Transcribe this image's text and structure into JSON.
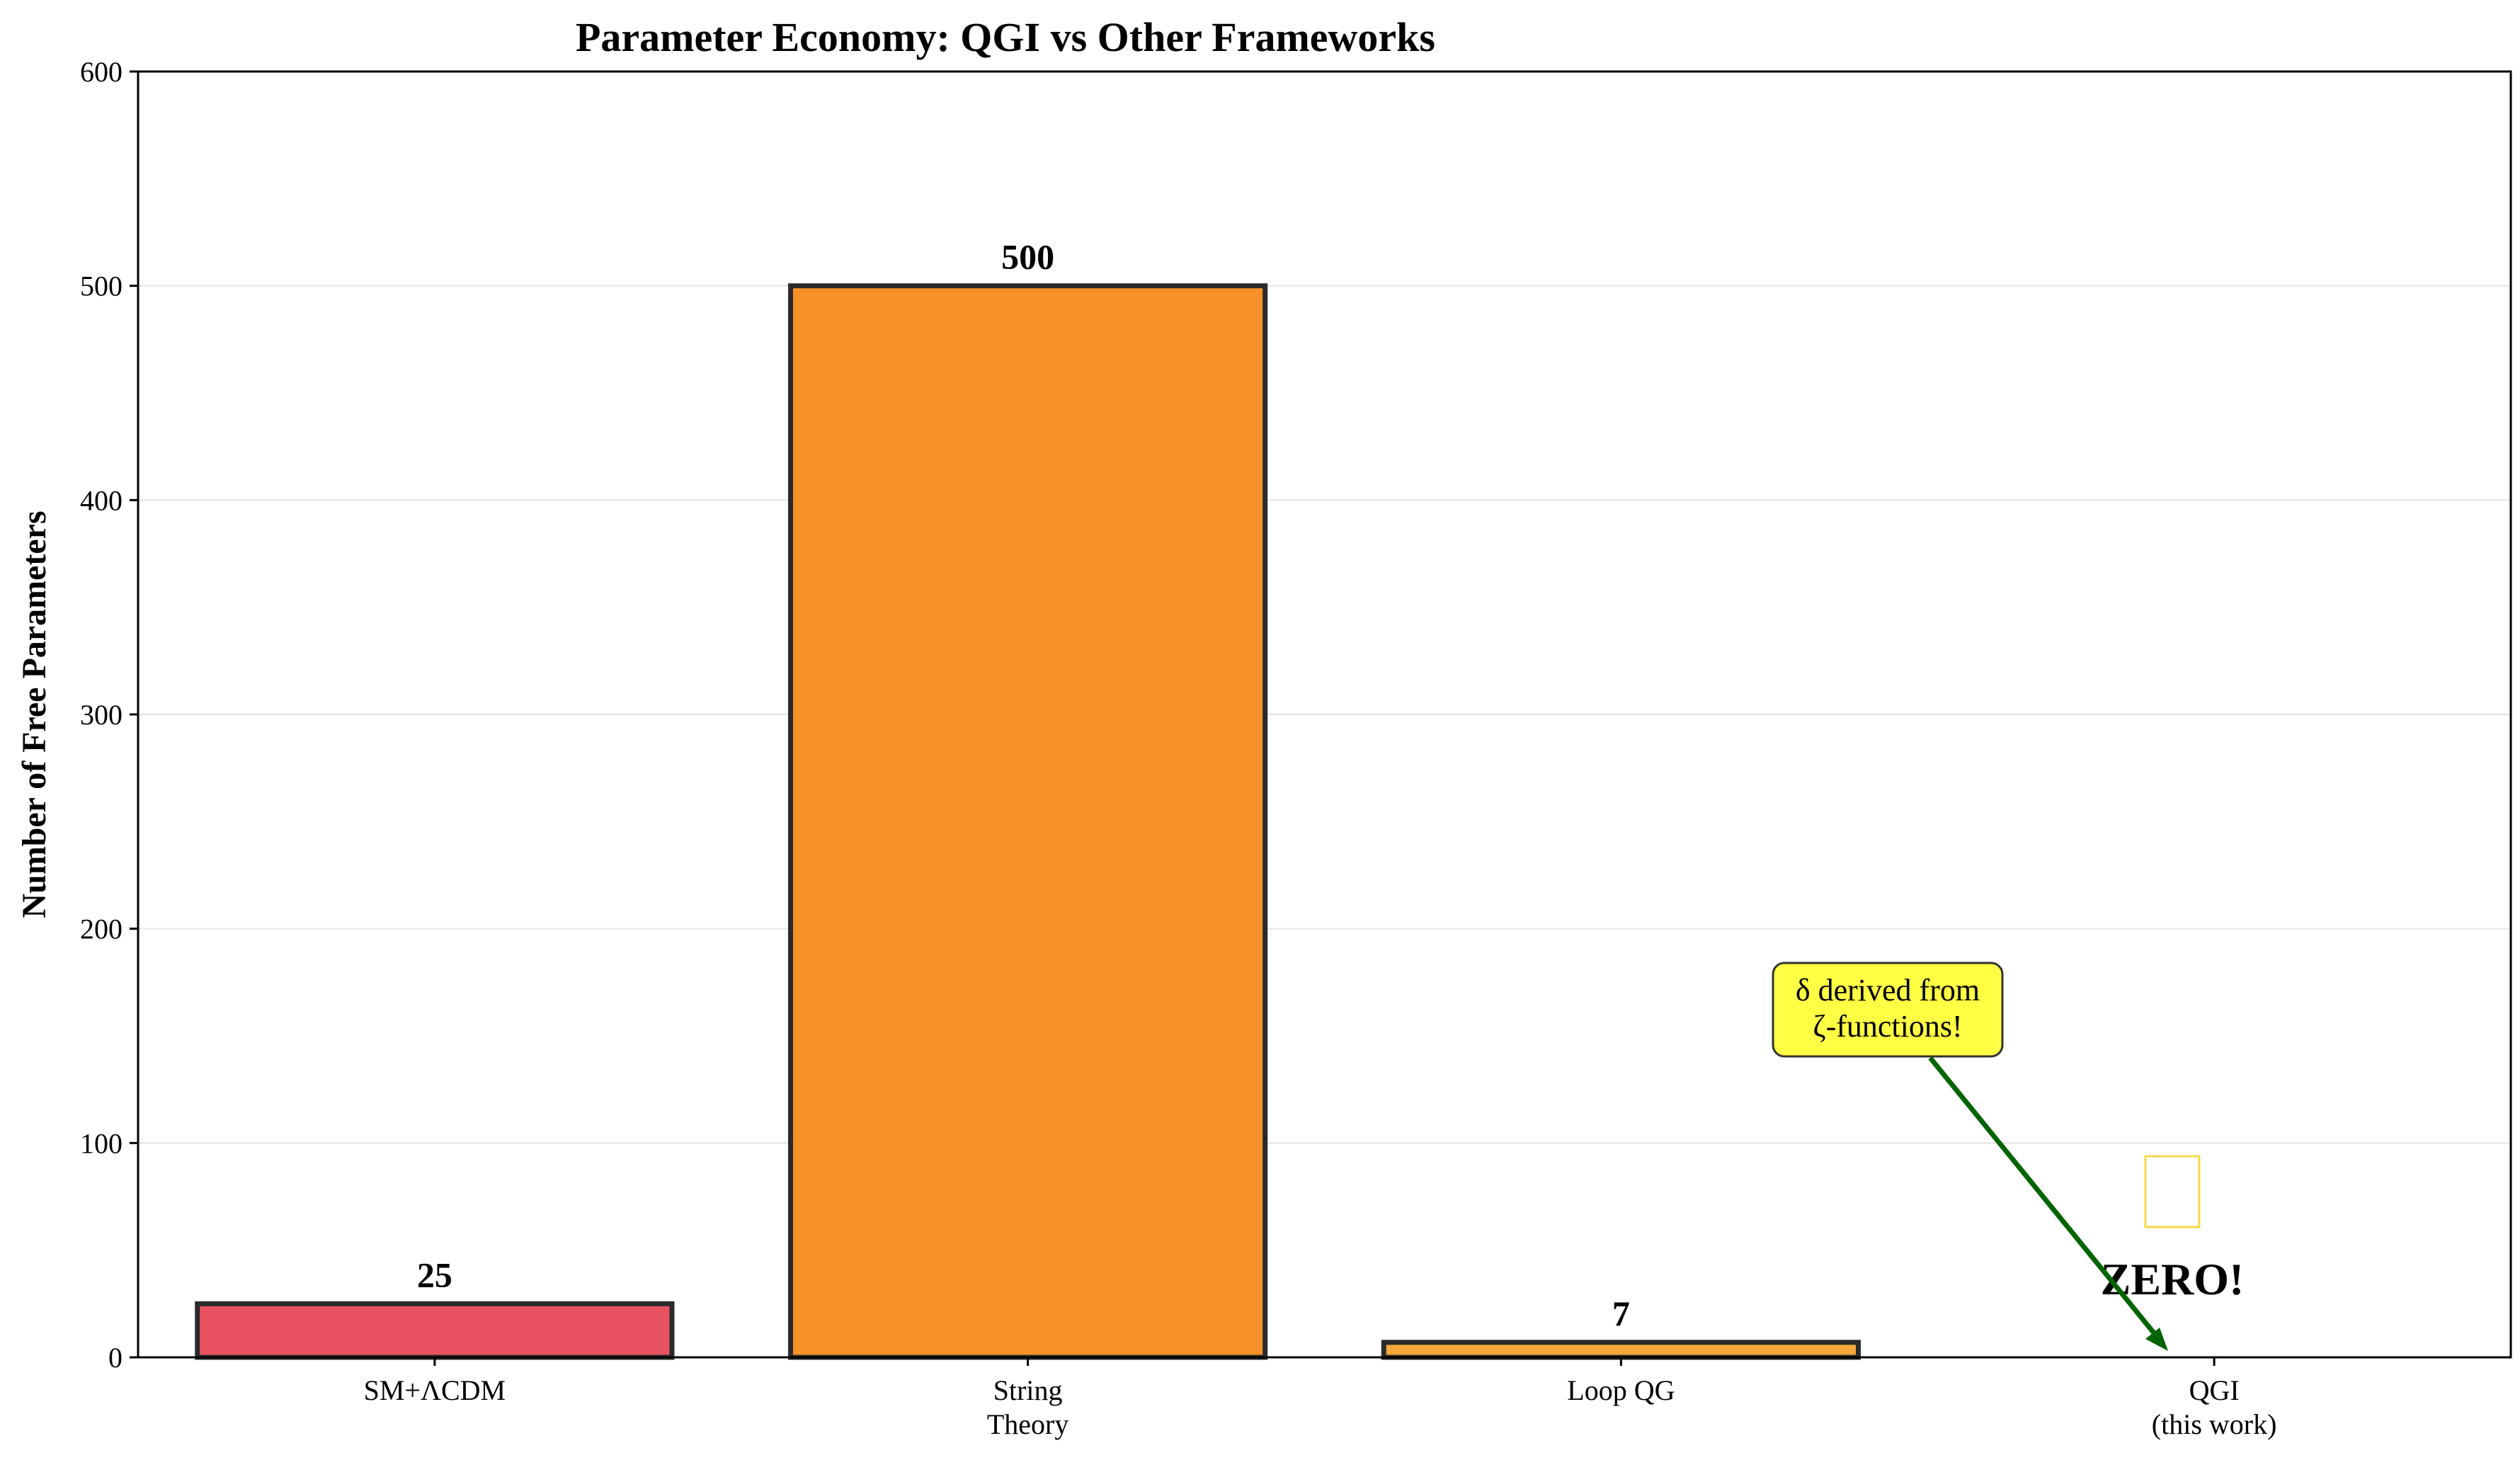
{
  "chart_data": {
    "type": "bar",
    "title": "Parameter Economy: QGI vs Other Frameworks",
    "xlabel": "",
    "ylabel": "Number of Free Parameters",
    "ylim": [
      0,
      600
    ],
    "yticks": [
      "0",
      "100",
      "200",
      "300",
      "400",
      "500",
      "600"
    ],
    "ytick_values": [
      0,
      100,
      200,
      300,
      400,
      500,
      600
    ],
    "grid": "horizontal",
    "categories": [
      [
        "SM+ΛCDM"
      ],
      [
        "String",
        "Theory"
      ],
      [
        "Loop QG"
      ],
      [
        "QGI",
        "(this work)"
      ]
    ],
    "values": [
      25,
      500,
      7,
      0
    ],
    "value_labels": [
      "25",
      "500",
      "7",
      ""
    ],
    "colors": [
      "#e8515f",
      "#f59128",
      "#f5a93a",
      "#2e8b57"
    ],
    "edge_color": "#2a2a2a",
    "annotations": {
      "zero_label": "ZERO!",
      "zero_color": "#006400",
      "callout_lines": [
        "δ derived from",
        "ζ-functions!"
      ],
      "callout_bg": "#ffff44",
      "arrow_color": "#006400",
      "glyph_box_color": "#f5d84a"
    }
  }
}
